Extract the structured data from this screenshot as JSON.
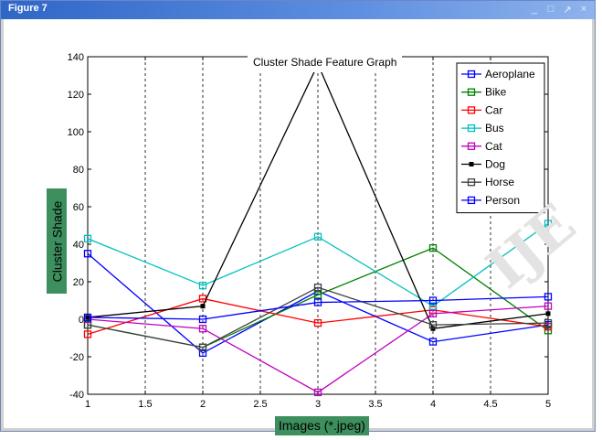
{
  "window": {
    "title": "Figure 7",
    "controls": [
      "_",
      "□",
      "↗",
      "×"
    ]
  },
  "chart_data": {
    "type": "line",
    "title": "Cluster Shade Feature Graph",
    "xlabel": "Images (*.jpeg)",
    "ylabel": "Cluster Shade",
    "xlim": [
      1,
      5
    ],
    "ylim": [
      -40,
      140
    ],
    "xticks": [
      1,
      1.5,
      2,
      2.5,
      3,
      3.5,
      4,
      4.5,
      5
    ],
    "yticks": [
      -40,
      -20,
      0,
      20,
      40,
      60,
      80,
      100,
      120,
      140
    ],
    "grid": "vertical dashed",
    "legend_position": "top-right",
    "x": [
      1,
      2,
      3,
      4,
      5
    ],
    "series": [
      {
        "name": "Aeroplane",
        "color": "#0000ff",
        "marker": "square",
        "values": [
          35,
          -18,
          15,
          -12,
          -3
        ]
      },
      {
        "name": "Bike",
        "color": "#008000",
        "marker": "square",
        "values": [
          -3,
          -15,
          13,
          38,
          -6
        ]
      },
      {
        "name": "Car",
        "color": "#ff0000",
        "marker": "square",
        "values": [
          -8,
          11,
          -2,
          5,
          -4
        ]
      },
      {
        "name": "Bus",
        "color": "#00c0c0",
        "marker": "square",
        "values": [
          43,
          18,
          44,
          7,
          51
        ]
      },
      {
        "name": "Cat",
        "color": "#c000c0",
        "marker": "square",
        "values": [
          0,
          -5,
          -39,
          3,
          7
        ]
      },
      {
        "name": "Dog",
        "color": "#000000",
        "marker": "point",
        "values": [
          1,
          7,
          136,
          -5,
          3
        ]
      },
      {
        "name": "Horse",
        "color": "#404040",
        "marker": "square",
        "values": [
          -3,
          -15,
          17,
          -3,
          -2
        ]
      },
      {
        "name": "Person",
        "color": "#0000ff",
        "marker": "square",
        "values": [
          1,
          0,
          9,
          10,
          12
        ]
      }
    ]
  }
}
